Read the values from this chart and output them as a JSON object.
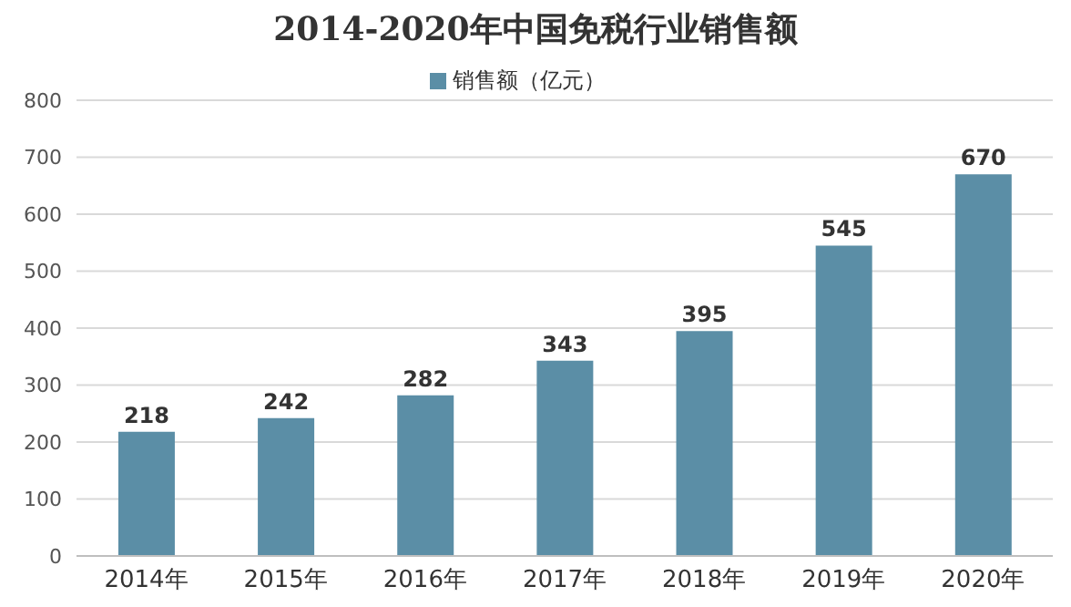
{
  "chart_data": {
    "type": "bar",
    "title": "2014-2020年中国免税行业销售额",
    "categories": [
      "2014年",
      "2015年",
      "2016年",
      "2017年",
      "2018年",
      "2019年",
      "2020年"
    ],
    "series": [
      {
        "name": "销售额（亿元）",
        "color": "#5b8ea6",
        "values": [
          218,
          242,
          282,
          343,
          395,
          545,
          670
        ]
      }
    ],
    "ylim": [
      0,
      800
    ],
    "yticks": [
      0,
      100,
      200,
      300,
      400,
      500,
      600,
      700,
      800
    ],
    "grid": "y",
    "legend": "top",
    "data_labels": true
  }
}
